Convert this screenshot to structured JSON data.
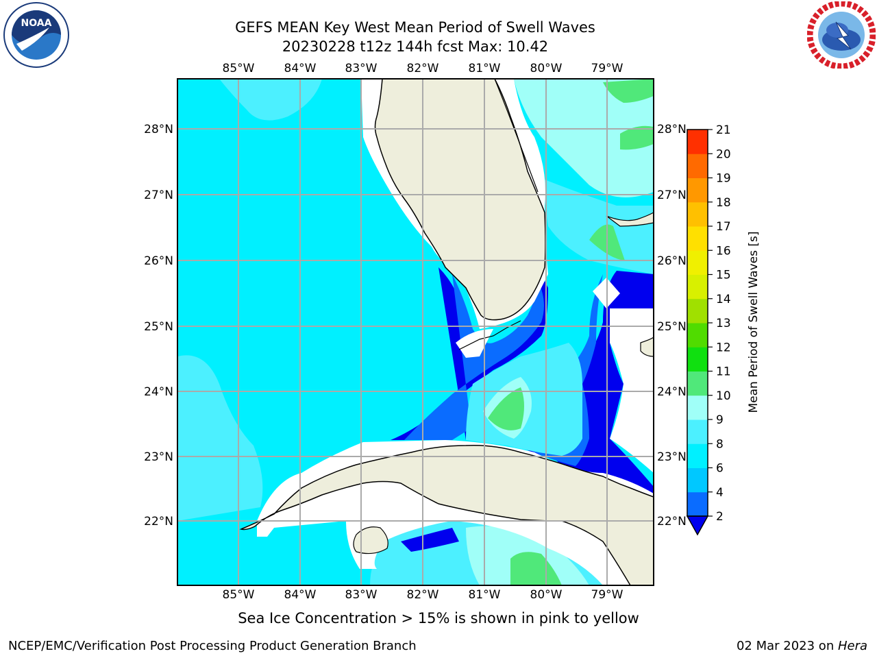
{
  "title_line1": "GEFS MEAN Key West Mean Period of Swell Waves",
  "title_line2": "20230228 t12z 144h fcst   Max: 10.42",
  "lon_labels": [
    "85°W",
    "84°W",
    "83°W",
    "82°W",
    "81°W",
    "80°W",
    "79°W"
  ],
  "lat_labels": [
    "28°N",
    "27°N",
    "26°N",
    "25°N",
    "24°N",
    "23°N",
    "22°N"
  ],
  "colorbar": {
    "label": "Mean Period of Swell Waves [s]",
    "ticks": [
      "2",
      "4",
      "6",
      "8",
      "9",
      "10",
      "11",
      "12",
      "13",
      "14",
      "15",
      "16",
      "17",
      "18",
      "19",
      "20",
      "21"
    ],
    "colors": [
      "#0a6cff",
      "#00c8ff",
      "#00f0ff",
      "#4cf0ff",
      "#a0fff8",
      "#50e87a",
      "#10e010",
      "#50dc00",
      "#a0e000",
      "#d8f000",
      "#f0f000",
      "#ffe000",
      "#ffc000",
      "#ff9800",
      "#ff6a00",
      "#ff3000",
      "#ff0000"
    ],
    "extend_color": "#0000ee"
  },
  "ice_note": "Sea Ice Concentration > 15% is shown in pink to yellow",
  "credit": "NCEP/EMC/Verification Post Processing Product Generation Branch",
  "date_prefix": "02 Mar 2023 on ",
  "date_host": "Hera",
  "logos": {
    "left": "noaa-logo",
    "left_text": "NOAA",
    "right": "nws-logo"
  }
}
